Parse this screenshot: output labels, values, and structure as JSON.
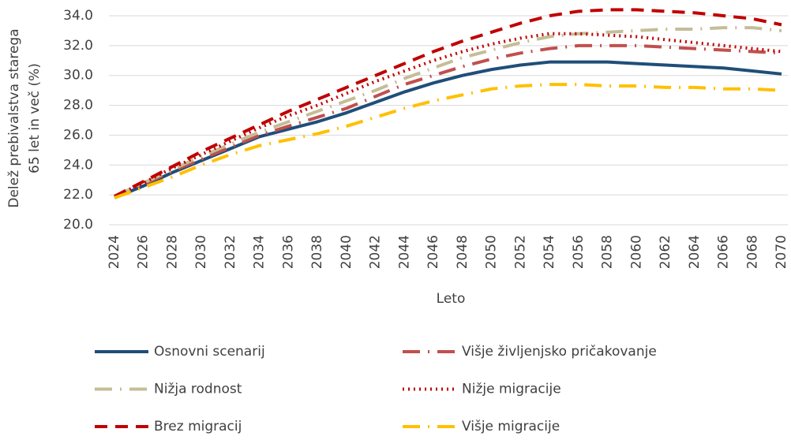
{
  "chart_data": {
    "type": "line",
    "y_label": [
      "Delež prebivalstva starega",
      "65 let in več (%)"
    ],
    "x_label": "Leto",
    "x": [
      2024,
      2026,
      2028,
      2030,
      2032,
      2034,
      2036,
      2038,
      2040,
      2042,
      2044,
      2046,
      2048,
      2050,
      2052,
      2054,
      2056,
      2058,
      2060,
      2062,
      2064,
      2066,
      2068,
      2070
    ],
    "xlim": [
      2024,
      2070
    ],
    "xticks": [
      2024,
      2026,
      2028,
      2030,
      2032,
      2034,
      2036,
      2038,
      2040,
      2042,
      2044,
      2046,
      2048,
      2050,
      2052,
      2054,
      2056,
      2058,
      2060,
      2062,
      2064,
      2066,
      2068,
      2070
    ],
    "ylim": [
      20,
      34
    ],
    "yticks": [
      {
        "value": 20,
        "label": "20.0"
      },
      {
        "value": 22,
        "label": "22.0"
      },
      {
        "value": 24,
        "label": "24.0"
      },
      {
        "value": 26,
        "label": "26.0"
      },
      {
        "value": 28,
        "label": "28.0"
      },
      {
        "value": 30,
        "label": "30.0"
      },
      {
        "value": 32,
        "label": "32.0"
      },
      {
        "value": 34,
        "label": "34.0"
      }
    ],
    "grid": true,
    "legend": "bottom",
    "series": [
      {
        "name": "Osnovni scenarij",
        "color": "#1f4e79",
        "dash": "solid",
        "values": [
          21.8,
          22.6,
          23.5,
          24.3,
          25.1,
          25.9,
          26.4,
          26.9,
          27.5,
          28.2,
          28.9,
          29.5,
          30.0,
          30.4,
          30.7,
          30.9,
          30.9,
          30.9,
          30.8,
          30.7,
          30.6,
          30.5,
          30.3,
          30.1
        ]
      },
      {
        "name": "Višje življenjsko pričakovanje",
        "color": "#c0504d",
        "dash": "long-dash-dot",
        "values": [
          21.9,
          22.7,
          23.6,
          24.4,
          25.2,
          26.0,
          26.6,
          27.2,
          27.8,
          28.6,
          29.4,
          30.0,
          30.6,
          31.1,
          31.5,
          31.8,
          32.0,
          32.0,
          32.0,
          31.9,
          31.8,
          31.7,
          31.6,
          31.5
        ]
      },
      {
        "name": "Nižja rodnost",
        "color": "#c4bd97",
        "dash": "long-dash-dot",
        "values": [
          21.9,
          22.8,
          23.7,
          24.6,
          25.4,
          26.2,
          26.9,
          27.6,
          28.3,
          29.0,
          29.8,
          30.5,
          31.2,
          31.7,
          32.2,
          32.6,
          32.8,
          32.9,
          33.0,
          33.1,
          33.1,
          33.2,
          33.2,
          33.0
        ]
      },
      {
        "name": "Nižje migracije",
        "color": "#c00000",
        "dash": "dotted",
        "values": [
          21.9,
          22.8,
          23.8,
          24.7,
          25.6,
          26.5,
          27.3,
          28.0,
          28.8,
          29.6,
          30.3,
          31.0,
          31.6,
          32.1,
          32.5,
          32.8,
          32.8,
          32.7,
          32.6,
          32.4,
          32.2,
          32.0,
          31.8,
          31.6
        ]
      },
      {
        "name": "Brez migracij",
        "color": "#c00000",
        "dash": "dashed",
        "values": [
          21.9,
          22.9,
          23.9,
          24.9,
          25.8,
          26.7,
          27.6,
          28.4,
          29.2,
          30.0,
          30.8,
          31.6,
          32.3,
          32.9,
          33.5,
          34.0,
          34.3,
          34.4,
          34.4,
          34.3,
          34.2,
          34.0,
          33.8,
          33.4
        ]
      },
      {
        "name": "Višje migracije",
        "color": "#ffc000",
        "dash": "long-dash-dot",
        "values": [
          21.8,
          22.5,
          23.2,
          24.0,
          24.7,
          25.3,
          25.7,
          26.1,
          26.6,
          27.2,
          27.8,
          28.3,
          28.7,
          29.1,
          29.3,
          29.4,
          29.4,
          29.3,
          29.3,
          29.2,
          29.2,
          29.1,
          29.1,
          29.0
        ]
      }
    ]
  }
}
